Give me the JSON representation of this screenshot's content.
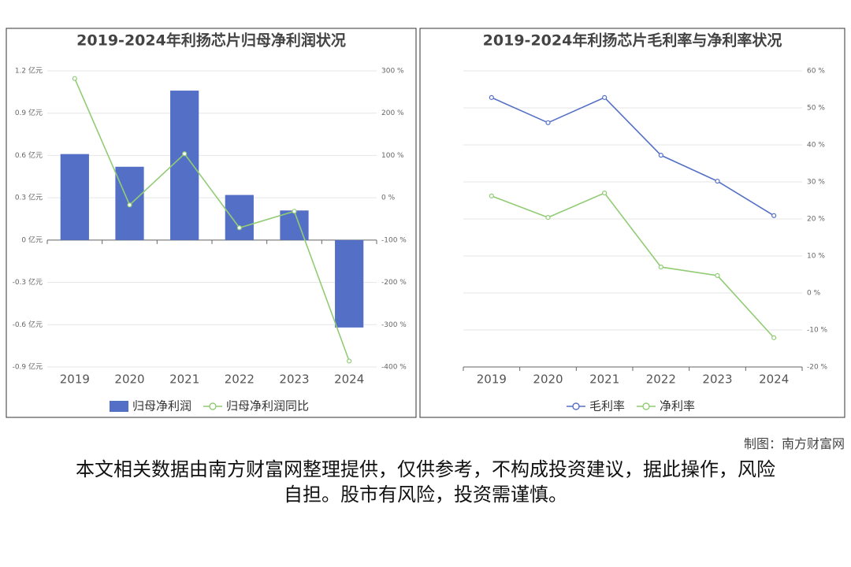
{
  "chart_data": [
    {
      "type": "bar",
      "title": "2019-2024年利扬芯片归母净利润状况",
      "categories": [
        "2019",
        "2020",
        "2021",
        "2022",
        "2023",
        "2024"
      ],
      "series": [
        {
          "name": "归母净利润",
          "type": "bar",
          "color": "#5470c6",
          "values": [
            0.61,
            0.52,
            1.06,
            0.32,
            0.21,
            -0.62
          ]
        },
        {
          "name": "归母净利润同比",
          "type": "line",
          "axis": "y2",
          "color": "#91cc75",
          "values": [
            282,
            -17,
            104,
            -71,
            -32,
            -386
          ]
        }
      ],
      "ylim": [
        -0.9,
        1.2
      ],
      "yticks": [
        {
          "value": -0.9,
          "label": "-0.9 亿元"
        },
        {
          "value": -0.6,
          "label": "-0.6 亿元"
        },
        {
          "value": -0.3,
          "label": "-0.3 亿元"
        },
        {
          "value": 0,
          "label": "0 亿元"
        },
        {
          "value": 0.3,
          "label": "0.3 亿元"
        },
        {
          "value": 0.6,
          "label": "0.6 亿元"
        },
        {
          "value": 0.9,
          "label": "0.9 亿元"
        },
        {
          "value": 1.2,
          "label": "1.2 亿元"
        }
      ],
      "y2lim": [
        -400,
        300
      ],
      "y2ticks": [
        {
          "value": -400,
          "label": "-400 %"
        },
        {
          "value": -300,
          "label": "-300 %"
        },
        {
          "value": -200,
          "label": "-200 %"
        },
        {
          "value": -100,
          "label": "-100 %"
        },
        {
          "value": 0,
          "label": "0 %"
        },
        {
          "value": 100,
          "label": "100 %"
        },
        {
          "value": 200,
          "label": "200 %"
        },
        {
          "value": 300,
          "label": "300 %"
        }
      ],
      "grid": true
    },
    {
      "type": "line",
      "title": "2019-2024年利扬芯片毛利率与净利率状况",
      "categories": [
        "2019",
        "2020",
        "2021",
        "2022",
        "2023",
        "2024"
      ],
      "series": [
        {
          "name": "毛利率",
          "type": "line",
          "color": "#5470c6",
          "values": [
            52.8,
            46.0,
            52.8,
            37.2,
            30.2,
            20.9
          ]
        },
        {
          "name": "净利率",
          "type": "line",
          "color": "#91cc75",
          "values": [
            26.2,
            20.4,
            27.0,
            7.0,
            4.7,
            -12.1
          ]
        }
      ],
      "ylim": [
        -20,
        60
      ],
      "yticks": [
        {
          "value": -20,
          "label": "-20 %"
        },
        {
          "value": -10,
          "label": "-10 %"
        },
        {
          "value": 0,
          "label": "0 %"
        },
        {
          "value": 10,
          "label": "10 %"
        },
        {
          "value": 20,
          "label": "20 %"
        },
        {
          "value": 30,
          "label": "30 %"
        },
        {
          "value": 40,
          "label": "40 %"
        },
        {
          "value": 50,
          "label": "50 %"
        },
        {
          "value": 60,
          "label": "60 %"
        }
      ],
      "axis_side": "right",
      "grid": true
    }
  ],
  "credit": "制图：南方财富网",
  "disclaimer": "本文相关数据由南方财富网整理提供，仅供参考，不构成投资建议，据此操作，风险自担。股市有风险，投资需谨慎。"
}
